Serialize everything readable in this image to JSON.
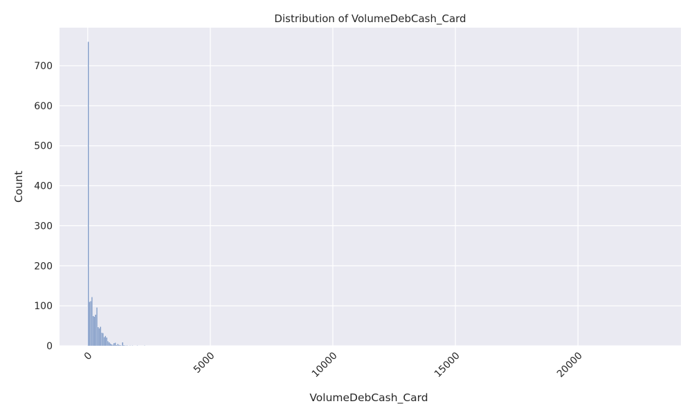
{
  "chart_data": {
    "type": "bar",
    "title": "Distribution of VolumeDebCash_Card",
    "xlabel": "VolumeDebCash_Card",
    "ylabel": "Count",
    "xlim": [
      -1150,
      24200
    ],
    "ylim": [
      0,
      795
    ],
    "xticks": [
      0,
      5000,
      10000,
      15000,
      20000
    ],
    "yticks": [
      0,
      100,
      200,
      300,
      400,
      500,
      600,
      700
    ],
    "grid": true,
    "legend": false,
    "colors": {
      "bar_fill": "#4c72b0",
      "bar_edge": "#ffffff",
      "plot_bg": "#eaeaf2",
      "grid": "#ffffff"
    },
    "bins": [
      {
        "x": 0,
        "count": 760
      },
      {
        "x": 50,
        "count": 110
      },
      {
        "x": 100,
        "count": 112
      },
      {
        "x": 150,
        "count": 122
      },
      {
        "x": 200,
        "count": 75
      },
      {
        "x": 250,
        "count": 73
      },
      {
        "x": 300,
        "count": 78
      },
      {
        "x": 350,
        "count": 96
      },
      {
        "x": 400,
        "count": 47
      },
      {
        "x": 450,
        "count": 44
      },
      {
        "x": 500,
        "count": 48
      },
      {
        "x": 550,
        "count": 33
      },
      {
        "x": 600,
        "count": 32
      },
      {
        "x": 650,
        "count": 22
      },
      {
        "x": 700,
        "count": 25
      },
      {
        "x": 750,
        "count": 21
      },
      {
        "x": 800,
        "count": 12
      },
      {
        "x": 850,
        "count": 9
      },
      {
        "x": 900,
        "count": 6
      },
      {
        "x": 950,
        "count": 4
      },
      {
        "x": 1000,
        "count": 3
      },
      {
        "x": 1050,
        "count": 7
      },
      {
        "x": 1100,
        "count": 8
      },
      {
        "x": 1150,
        "count": 2
      },
      {
        "x": 1200,
        "count": 5
      },
      {
        "x": 1250,
        "count": 3
      },
      {
        "x": 1300,
        "count": 2
      },
      {
        "x": 1350,
        "count": 1
      },
      {
        "x": 1400,
        "count": 9
      },
      {
        "x": 1450,
        "count": 2
      },
      {
        "x": 1500,
        "count": 1
      },
      {
        "x": 1550,
        "count": 1
      },
      {
        "x": 1600,
        "count": 1
      },
      {
        "x": 1700,
        "count": 1
      },
      {
        "x": 1800,
        "count": 1
      },
      {
        "x": 2000,
        "count": 1
      },
      {
        "x": 2300,
        "count": 1
      }
    ]
  }
}
